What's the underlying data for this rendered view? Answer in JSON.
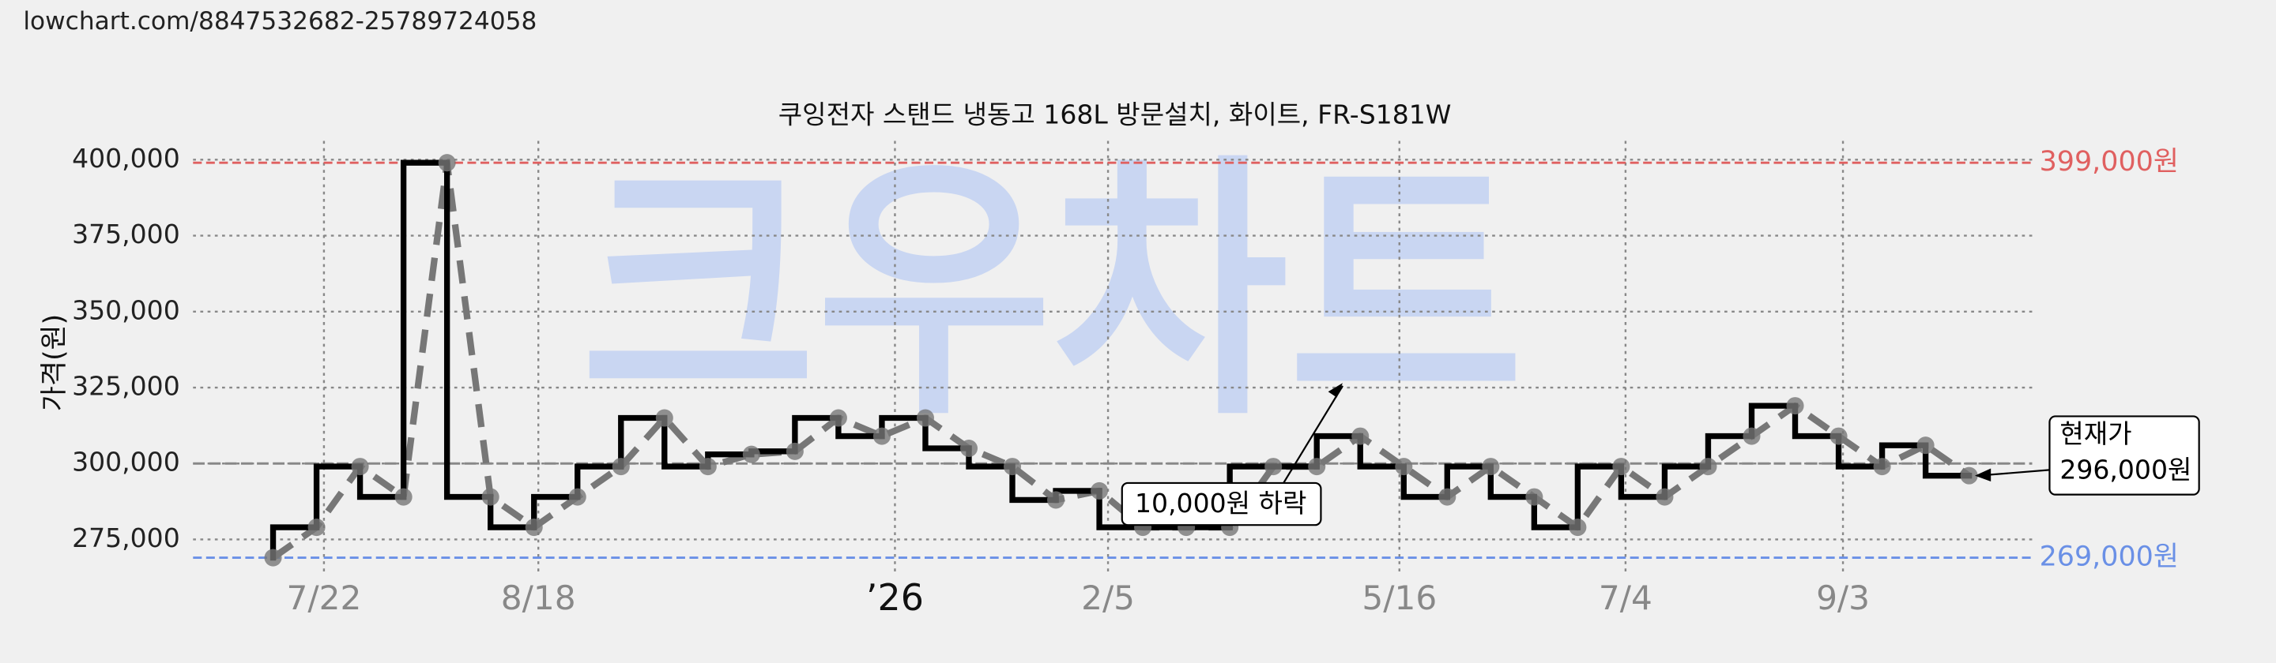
{
  "url": "lowchart.com/8847532682-25789724058",
  "watermark": "크우차트",
  "chart_data": {
    "type": "line",
    "title": "쿠잉전자 스탠드 냉동고 168L 방문설치, 화이트, FR-S181W",
    "y_label": "가격(원)",
    "values": [
      269000,
      279000,
      299000,
      289000,
      399000,
      289000,
      279000,
      289000,
      299000,
      315000,
      299000,
      303000,
      304000,
      315000,
      309000,
      315000,
      305000,
      299000,
      288000,
      291000,
      279000,
      279000,
      279000,
      299000,
      299000,
      309000,
      299000,
      289000,
      299000,
      289000,
      279000,
      299000,
      289000,
      299000,
      309000,
      319000,
      309000,
      299000,
      306000,
      296000
    ],
    "color": "#000000",
    "trend_color": "#777777",
    "xlim": [
      -1.84,
      40.45
    ],
    "xticks": [
      {
        "value": 1.17,
        "label": "7/22"
      },
      {
        "value": 6.1,
        "label": "8/18"
      },
      {
        "value": 14.3,
        "label": "’26"
      },
      {
        "value": 19.2,
        "label": "2/5"
      },
      {
        "value": 25.9,
        "label": "5/16"
      },
      {
        "value": 31.1,
        "label": "7/4"
      },
      {
        "value": 36.1,
        "label": "9/3"
      }
    ],
    "ylim": [
      264000,
      406200
    ],
    "yticks": [
      {
        "value": 275000,
        "label": "275,000"
      },
      {
        "value": 300000,
        "label": "300,000"
      },
      {
        "value": 325000,
        "label": "325,000"
      },
      {
        "value": 350000,
        "label": "350,000"
      },
      {
        "value": 375000,
        "label": "375,000"
      },
      {
        "value": 400000,
        "label": "400,000"
      }
    ],
    "grid": true,
    "max_line": {
      "value": 399000,
      "label": "399,000원",
      "color": "#e06060"
    },
    "min_line": {
      "value": 269000,
      "label": "269,000원",
      "color": "#6a90e6"
    },
    "avg_line": {
      "value": 300000,
      "color": "#888888"
    },
    "current": {
      "title": "현재가",
      "label": "296,000원"
    },
    "drop_note": "10,000원 하락"
  }
}
